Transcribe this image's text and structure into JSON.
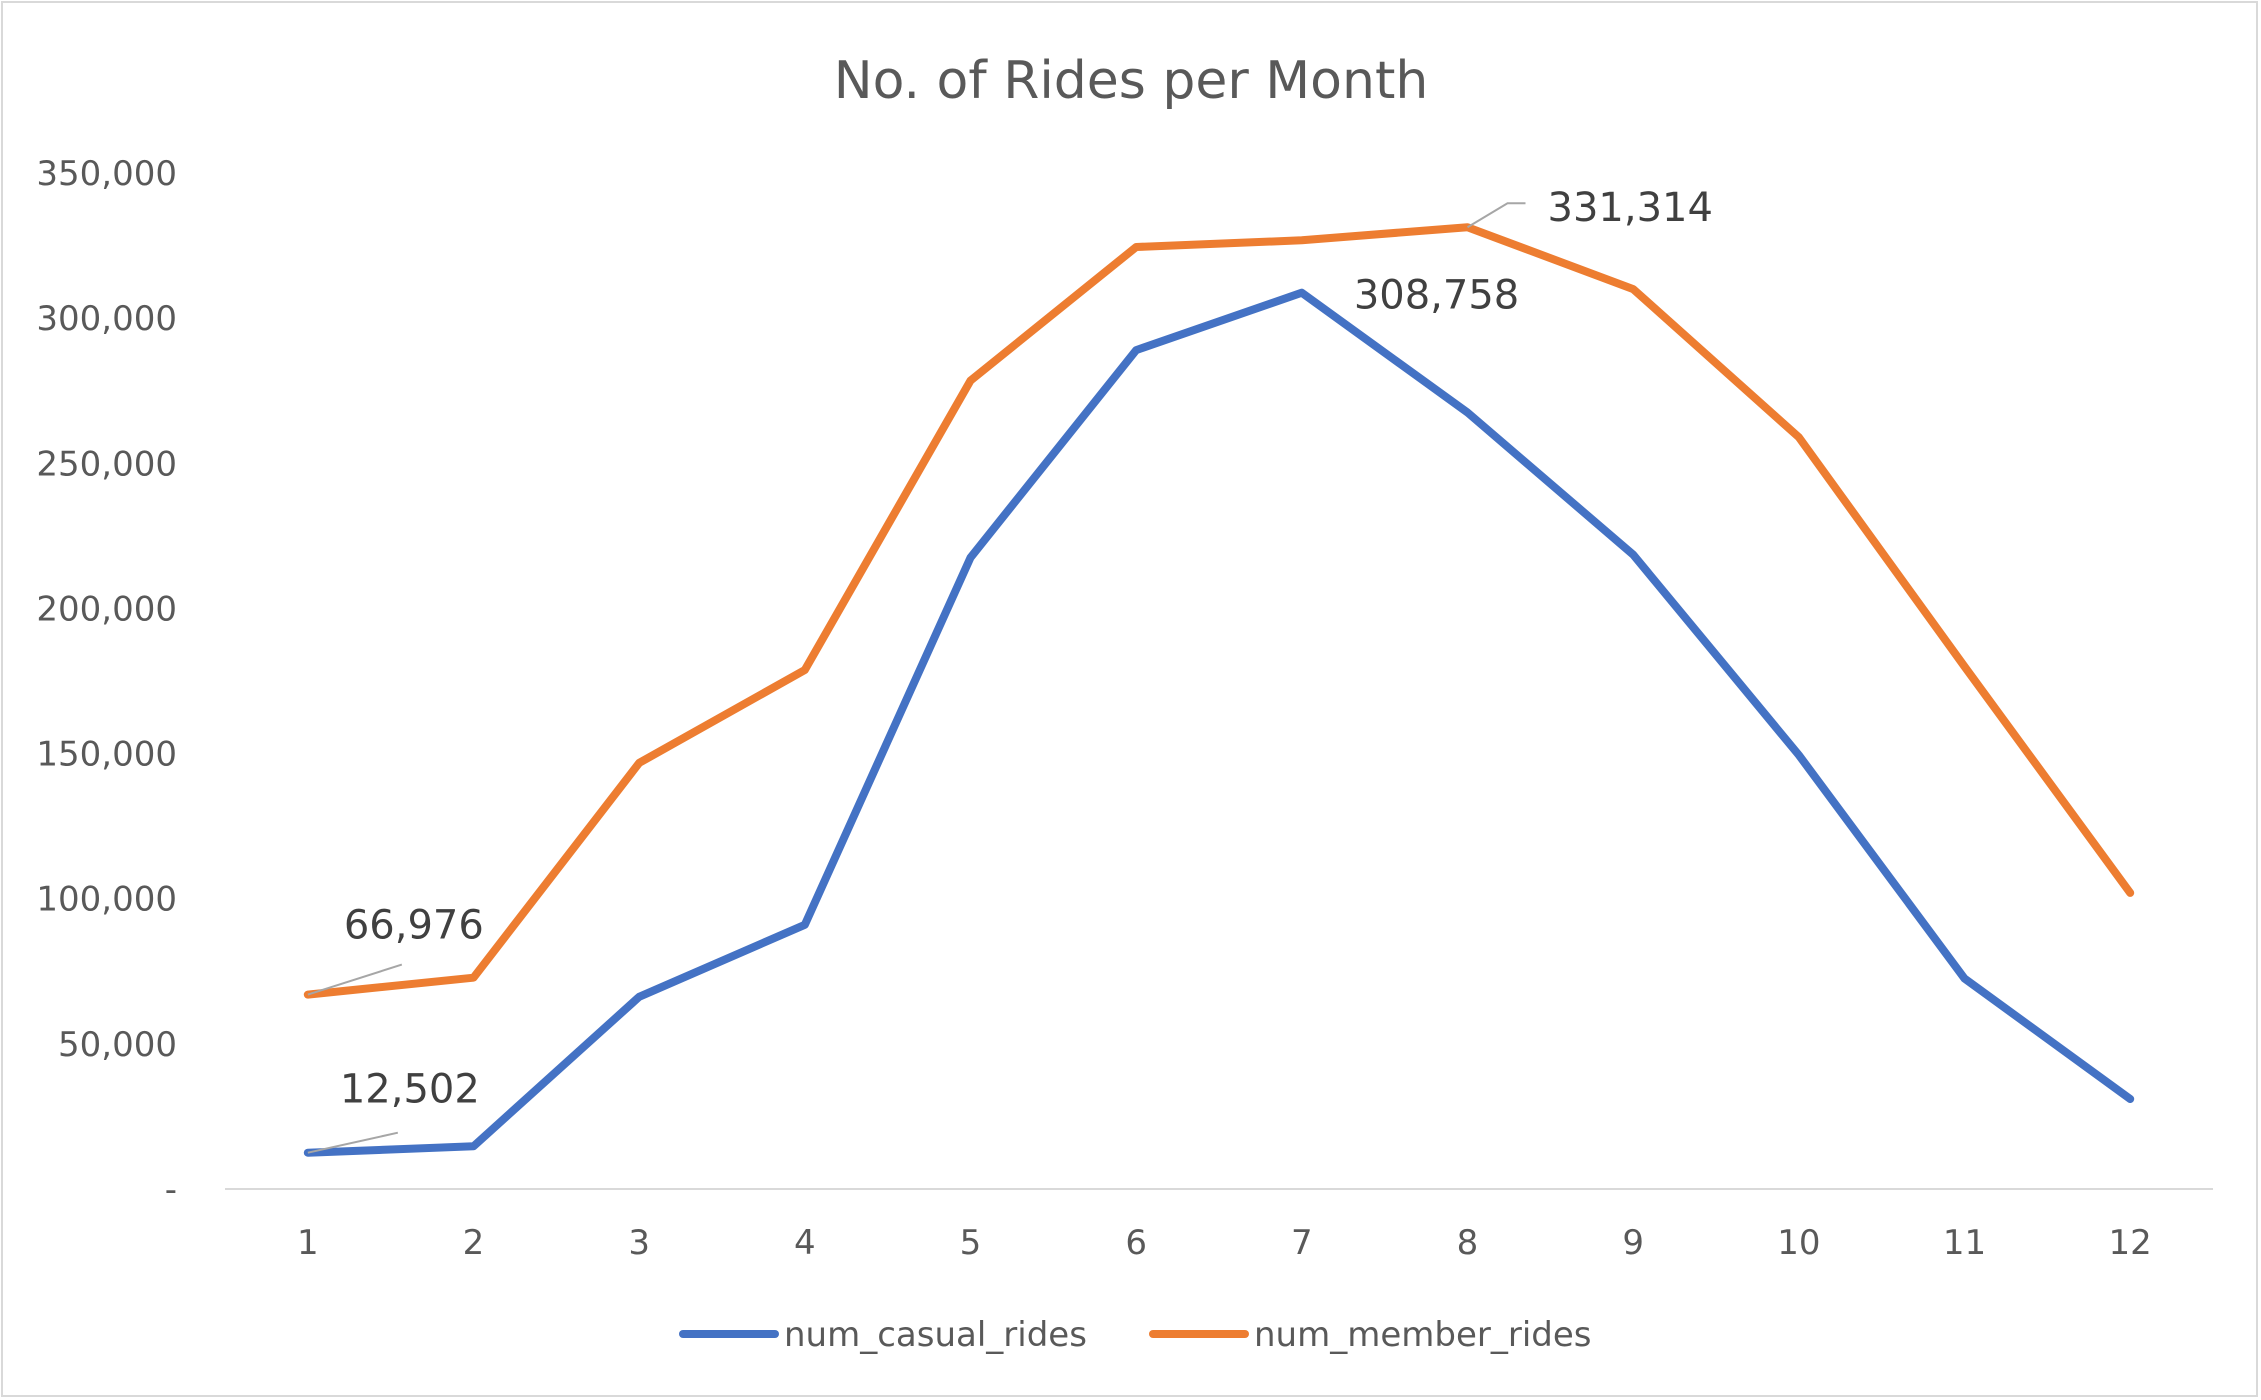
{
  "chart_data": {
    "type": "line",
    "title": "No. of Rides per Month",
    "xlabel": "",
    "ylabel": "",
    "categories": [
      "1",
      "2",
      "3",
      "4",
      "5",
      "6",
      "7",
      "8",
      "9",
      "10",
      "11",
      "12"
    ],
    "ylim": [
      0,
      350000
    ],
    "y_ticks": [
      0,
      50000,
      100000,
      150000,
      200000,
      250000,
      300000,
      350000
    ],
    "y_tick_labels": [
      "-",
      "50,000",
      "100,000",
      "150,000",
      "200,000",
      "250,000",
      "300,000",
      "350,000"
    ],
    "grid": false,
    "legend_position": "bottom",
    "series": [
      {
        "name": "num_casual_rides",
        "color": "#4472C4",
        "values": [
          12502,
          14700,
          66200,
          91000,
          217500,
          289000,
          308758,
          267500,
          218500,
          149500,
          72500,
          31000
        ]
      },
      {
        "name": "num_member_rides",
        "color": "#ED7D31",
        "values": [
          66976,
          72800,
          146800,
          178800,
          278500,
          324500,
          326800,
          331314,
          310000,
          259000,
          180000,
          102000
        ]
      }
    ],
    "data_labels": [
      {
        "series": 0,
        "index": 0,
        "text": "12,502"
      },
      {
        "series": 0,
        "index": 6,
        "text": "308,758"
      },
      {
        "series": 1,
        "index": 0,
        "text": "66,976"
      },
      {
        "series": 1,
        "index": 7,
        "text": "331,314"
      }
    ]
  }
}
